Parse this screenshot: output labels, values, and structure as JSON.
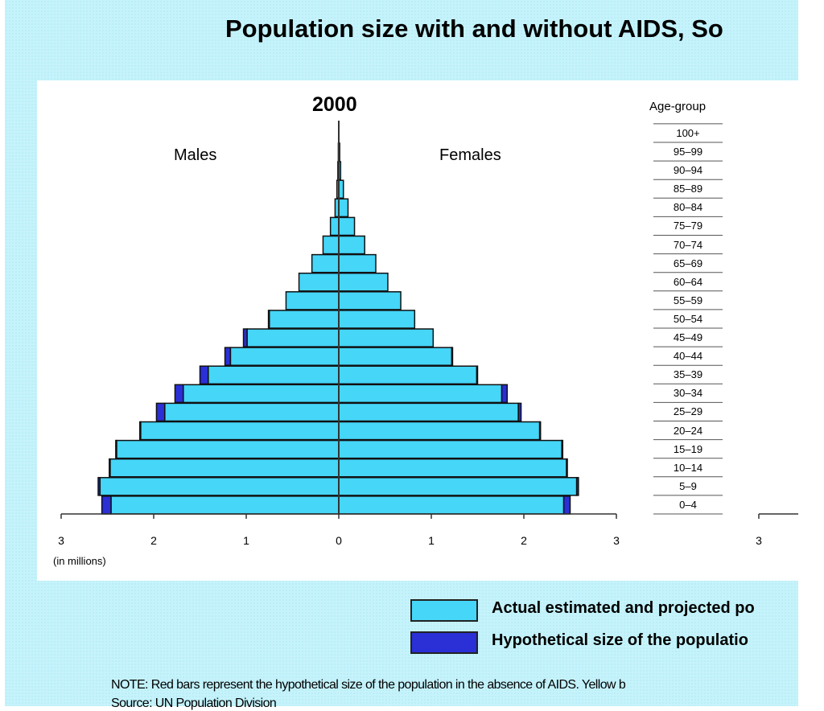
{
  "colors": {
    "actual": "#45d6f8",
    "hypothetical": "#2a2fd6",
    "background": "#c6f3fb"
  },
  "chart_data": {
    "type": "bar",
    "orientation": "horizontal-population-pyramid",
    "title": "Population size with and without AIDS, So",
    "subtitle": "2000",
    "left_label": "Males",
    "right_label": "Females",
    "categories_label": "Age-group",
    "unit_label": "(in millions)",
    "xlim": [
      -3,
      3
    ],
    "x_ticks": [
      "3",
      "2",
      "1",
      "0",
      "1",
      "2",
      "3"
    ],
    "extra_tick": "3",
    "categories": [
      "0–4",
      "5–9",
      "10–14",
      "15–19",
      "20–24",
      "25–29",
      "30–34",
      "35–39",
      "40–44",
      "45–49",
      "50–54",
      "55–59",
      "60–64",
      "65–69",
      "70–74",
      "75–79",
      "80–84",
      "85–89",
      "90–94",
      "95–99",
      "100+"
    ],
    "series": [
      {
        "name": "Actual estimated and projected po",
        "side": "males",
        "values": [
          2.46,
          2.58,
          2.47,
          2.4,
          2.14,
          1.88,
          1.68,
          1.41,
          1.17,
          0.99,
          0.75,
          0.57,
          0.43,
          0.29,
          0.17,
          0.09,
          0.04,
          0.02,
          0.01,
          0.005,
          0
        ]
      },
      {
        "name": "Hypothetical size of the populatio",
        "side": "males",
        "values": [
          2.56,
          2.6,
          2.48,
          2.41,
          2.15,
          1.97,
          1.77,
          1.5,
          1.23,
          1.03,
          0.76,
          0.57,
          0.43,
          0.29,
          0.17,
          0.09,
          0.04,
          0.02,
          0.01,
          0.005,
          0
        ]
      },
      {
        "name": "Actual estimated and projected po",
        "side": "females",
        "values": [
          2.43,
          2.57,
          2.46,
          2.41,
          2.17,
          1.94,
          1.76,
          1.49,
          1.22,
          1.02,
          0.82,
          0.67,
          0.53,
          0.4,
          0.28,
          0.17,
          0.1,
          0.05,
          0.02,
          0.01,
          0
        ]
      },
      {
        "name": "Hypothetical size of the populatio",
        "side": "females",
        "values": [
          2.5,
          2.59,
          2.47,
          2.42,
          2.18,
          1.97,
          1.82,
          1.5,
          1.23,
          1.02,
          0.82,
          0.67,
          0.53,
          0.4,
          0.28,
          0.17,
          0.1,
          0.05,
          0.02,
          0.01,
          0
        ]
      }
    ]
  },
  "legend": {
    "actual": "Actual estimated and projected po",
    "hypothetical": "Hypothetical size of the populatio"
  },
  "note": "NOTE: Red bars represent the hypothetical size of the population in the absence of AIDS. Yellow b",
  "source": "Source: UN Population Division"
}
